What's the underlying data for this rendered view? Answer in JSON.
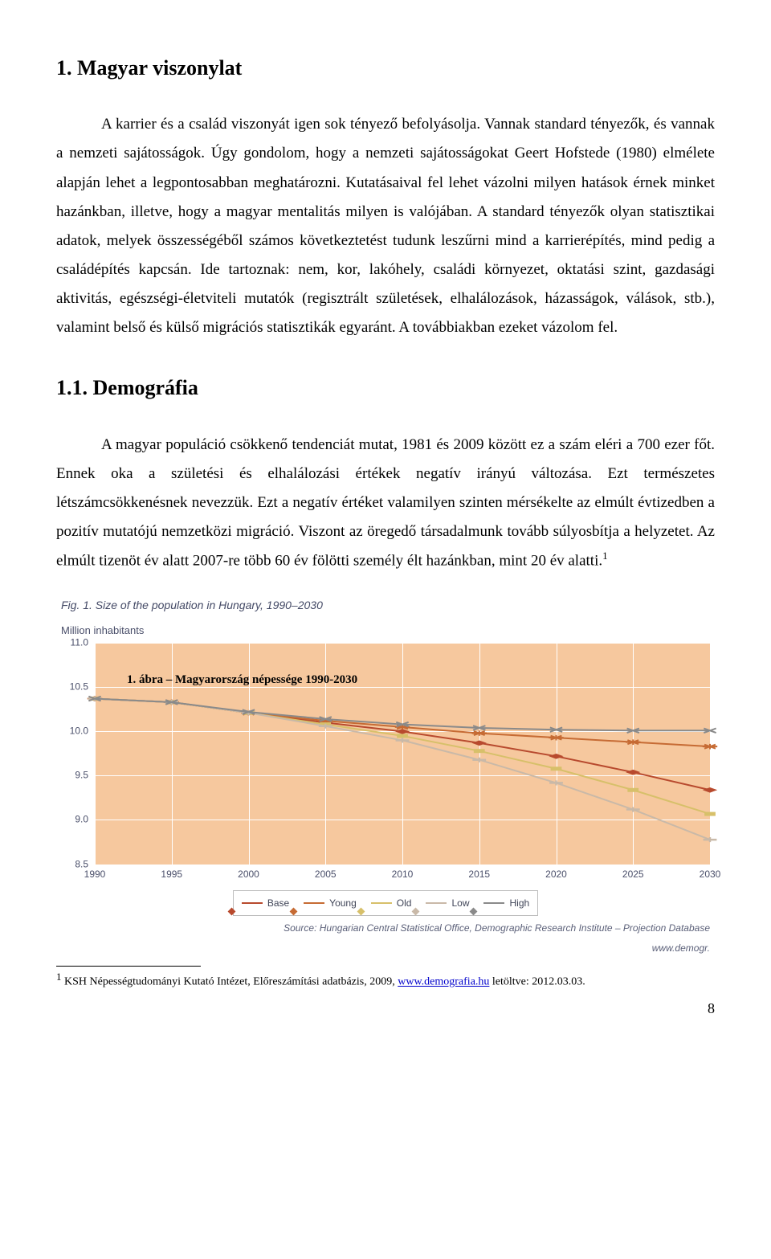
{
  "section": {
    "heading": "1. Magyar viszonylat",
    "para1": "A karrier és a család viszonyát igen sok tényező befolyásolja. Vannak standard tényezők, és vannak a nemzeti sajátosságok. Úgy gondolom, hogy a nemzeti sajátosságokat Geert Hofstede (1980) elmélete alapján lehet a legpontosabban meghatározni. Kutatásaival fel lehet vázolni milyen hatások érnek minket hazánkban, illetve, hogy a magyar mentalitás milyen is valójában. A standard tényezők olyan statisztikai adatok, melyek összességéből számos következtetést tudunk leszűrni mind a karrierépítés, mind pedig a családépítés kapcsán. Ide tartoznak: nem, kor, lakóhely, családi környezet, oktatási szint, gazdasági aktivitás, egészségi-életviteli mutatók (regisztrált születések, elhalálozások, házasságok, válások, stb.), valamint belső és külső migrációs statisztikák egyaránt. A továbbiakban ezeket vázolom fel."
  },
  "subsection": {
    "heading": "1.1. Demográfia",
    "para1_prefix": "A magyar populáció csökkenő tendenciát mutat, 1981 és 2009 között ez a szám eléri a 700 ezer főt. Ennek oka a születési és elhalálozási értékek negatív irányú változása. Ezt természetes létszámcsökkenésnek nevezzük. Ezt a negatív értéket valamilyen szinten mérsékelte az elmúlt évtizedben a pozitív mutatójú nemzetközi migráció. Viszont az öregedő társadalmunk tovább súlyosbítja a helyzetet. Az elmúlt tizenöt év alatt 2007-re több 60 év fölötti személy élt hazánkban, mint 20 év alatti.",
    "footnote_ref": "1"
  },
  "figure": {
    "fig_label": "Fig. 1. Size of the population in Hungary, 1990–2030",
    "y_axis_label": "Million inhabitants",
    "caption_inside": "1. ábra – Magyarország népessége 1990-2030",
    "y_ticks": [
      "11.0",
      "10.5",
      "10.0",
      "9.5",
      "9.0",
      "8.5"
    ],
    "x_ticks": [
      "1990",
      "1995",
      "2000",
      "2005",
      "2010",
      "2015",
      "2020",
      "2025",
      "2030"
    ],
    "ylim": [
      8.5,
      11.0
    ],
    "xlim": [
      1990,
      2030
    ],
    "background_color": "#f6c89e",
    "grid_color": "#ffffff",
    "series": [
      {
        "name": "Base",
        "color": "#b84a2e",
        "marker": "diamond",
        "values": [
          [
            1990,
            10.37
          ],
          [
            1995,
            10.33
          ],
          [
            2000,
            10.21
          ],
          [
            2005,
            10.1
          ],
          [
            2010,
            10.0
          ],
          [
            2015,
            9.87
          ],
          [
            2020,
            9.72
          ],
          [
            2025,
            9.54
          ],
          [
            2030,
            9.34
          ]
        ]
      },
      {
        "name": "Young",
        "color": "#c66b34",
        "marker": "asterisk",
        "values": [
          [
            1990,
            10.37
          ],
          [
            1995,
            10.33
          ],
          [
            2000,
            10.21
          ],
          [
            2005,
            10.12
          ],
          [
            2010,
            10.05
          ],
          [
            2015,
            9.98
          ],
          [
            2020,
            9.93
          ],
          [
            2025,
            9.88
          ],
          [
            2030,
            9.83
          ]
        ]
      },
      {
        "name": "Old",
        "color": "#d7c06a",
        "marker": "square",
        "values": [
          [
            1990,
            10.37
          ],
          [
            1995,
            10.33
          ],
          [
            2000,
            10.21
          ],
          [
            2005,
            10.08
          ],
          [
            2010,
            9.95
          ],
          [
            2015,
            9.78
          ],
          [
            2020,
            9.58
          ],
          [
            2025,
            9.34
          ],
          [
            2030,
            9.07
          ]
        ]
      },
      {
        "name": "Low",
        "color": "#c9b9a8",
        "marker": "cross",
        "values": [
          [
            1990,
            10.37
          ],
          [
            1995,
            10.33
          ],
          [
            2000,
            10.21
          ],
          [
            2005,
            10.06
          ],
          [
            2010,
            9.9
          ],
          [
            2015,
            9.68
          ],
          [
            2020,
            9.42
          ],
          [
            2025,
            9.12
          ],
          [
            2030,
            8.78
          ]
        ]
      },
      {
        "name": "High",
        "color": "#8a8a8a",
        "marker": "x",
        "values": [
          [
            1990,
            10.37
          ],
          [
            1995,
            10.33
          ],
          [
            2000,
            10.22
          ],
          [
            2005,
            10.14
          ],
          [
            2010,
            10.08
          ],
          [
            2015,
            10.04
          ],
          [
            2020,
            10.02
          ],
          [
            2025,
            10.01
          ],
          [
            2030,
            10.01
          ]
        ]
      }
    ],
    "legend": [
      "Base",
      "Young",
      "Old",
      "Low",
      "High"
    ],
    "source_line1": "Source: Hungarian Central Statistical Office, Demographic Research Institute – Projection Database",
    "source_line2": "www.demogr."
  },
  "footnote": {
    "num": "1",
    "text_before_link": " KSH Népességtudományi Kutató Intézet, Előreszámítási adatbázis, 2009, ",
    "link_text": "www.demografia.hu",
    "text_after_link": " letöltve: 2012.03.03."
  },
  "page_number": "8"
}
